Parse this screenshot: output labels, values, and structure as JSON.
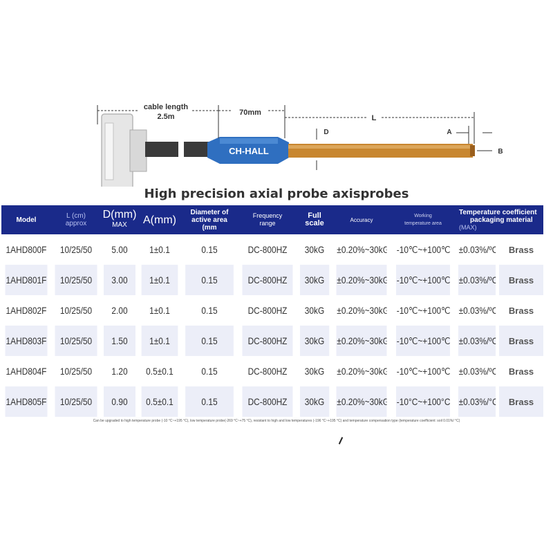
{
  "diagram": {
    "cable_length_label": "cable length",
    "cable_length_value": "2.5m",
    "probe_length_label": "70mm",
    "rod_length_label": "L",
    "d_label": "D",
    "a_label": "A",
    "b_label": "B",
    "housing_brand": "CH-HALL",
    "colors": {
      "cable": "#3a3a3a",
      "housing": "#2f6fc0",
      "rod": "#c8862f",
      "connector": "#e8e8e8"
    }
  },
  "title": "High precision axial probe axisprobes",
  "table": {
    "headers": {
      "model": "Model",
      "length_line1": "L (cm)",
      "length_line2": "approx",
      "diameter_line1": "D(mm)",
      "diameter_line2": "MAX",
      "a_mm": "A(mm)",
      "active_area_line1": "Diameter of",
      "active_area_line2": "active area",
      "active_area_line3": "(mm",
      "frequency_line1": "Frequency",
      "frequency_line2": "range",
      "full_scale_line1": "Full",
      "full_scale_line2": "scale",
      "accuracy": "Accuracy",
      "working_temp_line1": "Working",
      "working_temp_line2": "temperature area",
      "temp_coeff_line1": "Temperature coefficient",
      "temp_coeff_line2": "(MAX)",
      "packaging": "packaging material"
    },
    "rows": [
      {
        "model": "1AHD800F",
        "length": "10/25/50",
        "d_max": "5.00",
        "a": "1±0.1",
        "active_area": "0.15",
        "frequency": "DC-800HZ",
        "full_scale": "30kG",
        "accuracy": "±0.20%~30kG",
        "working_temp": "-10℃~+100℃",
        "temp_coeff": "±0.03%/ºC",
        "material": "Brass"
      },
      {
        "model": "1AHD801F",
        "length": "10/25/50",
        "d_max": "3.00",
        "a": "1±0.1",
        "active_area": "0.15",
        "frequency": "DC-800HZ",
        "full_scale": "30kG",
        "accuracy": "±0.20%~30kG",
        "working_temp": "-10℃~+100℃",
        "temp_coeff": "±0.03%/ºC",
        "material": "Brass"
      },
      {
        "model": "1AHD802F",
        "length": "10/25/50",
        "d_max": "2.00",
        "a": "1±0.1",
        "active_area": "0.15",
        "frequency": "DC-800HZ",
        "full_scale": "30kG",
        "accuracy": "±0.20%~30kG",
        "working_temp": "-10℃~+100℃",
        "temp_coeff": "±0.03%/ºC",
        "material": "Brass"
      },
      {
        "model": "1AHD803F",
        "length": "10/25/50",
        "d_max": "1.50",
        "a": "1±0.1",
        "active_area": "0.15",
        "frequency": "DC-800HZ",
        "full_scale": "30kG",
        "accuracy": "±0.20%~30kG",
        "working_temp": "-10℃~+100℃",
        "temp_coeff": "±0.03%/ºC",
        "material": "Brass"
      },
      {
        "model": "1AHD804F",
        "length": "10/25/50",
        "d_max": "1.20",
        "a": "0.5±0.1",
        "active_area": "0.15",
        "frequency": "DC-800HZ",
        "full_scale": "30kG",
        "accuracy": "±0.20%~30kG",
        "working_temp": "-10℃~+100℃",
        "temp_coeff": "±0.03%/ºC",
        "material": "Brass"
      },
      {
        "model": "1AHD805F",
        "length": "10/25/50",
        "d_max": "0.90",
        "a": "0.5±0.1",
        "active_area": "0.15",
        "frequency": "DC-800HZ",
        "full_scale": "30kG",
        "accuracy": "±0.20%~30kG",
        "working_temp": "-10°C~+100°C",
        "temp_coeff": "±0.03%/°C",
        "material": "Brass"
      }
    ]
  },
  "footnote": "Can be upgraded to high temperature probe (-10 °C~+195 °C), low temperature probe(-269 °C~+75 °C), resistant to high and low temperatures (-196 °C~+195 °C) and temperature compensation type (temperature coefficient: soil 0.01%/ °C)"
}
